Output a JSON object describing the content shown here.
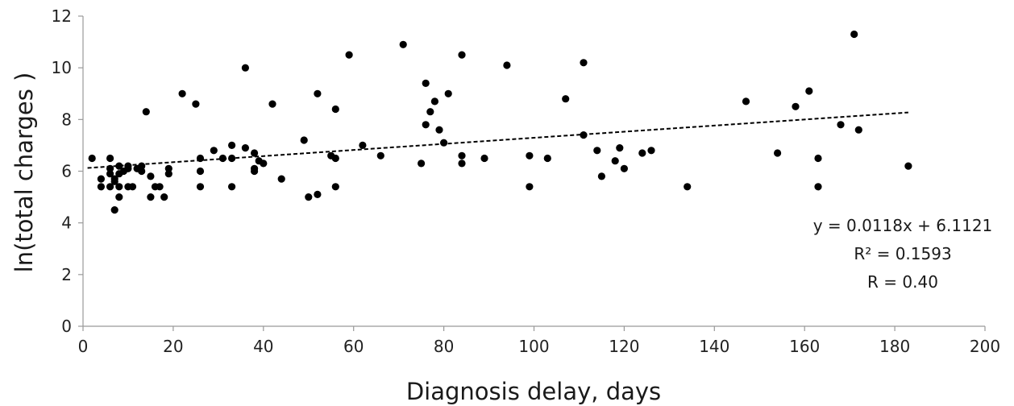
{
  "chart_data": {
    "type": "scatter",
    "xlabel": "Diagnosis delay, days",
    "ylabel": "ln(total charges )",
    "xlim": [
      0,
      200
    ],
    "ylim": [
      0,
      12
    ],
    "xticks": [
      0,
      20,
      40,
      60,
      80,
      100,
      120,
      140,
      160,
      180,
      200
    ],
    "yticks": [
      0,
      2,
      4,
      6,
      8,
      10,
      12
    ],
    "grid": false,
    "legend": "none",
    "marker_color": "#000000",
    "points": [
      [
        2,
        6.5
      ],
      [
        4,
        5.7
      ],
      [
        4,
        5.4
      ],
      [
        6,
        6.5
      ],
      [
        6,
        6.1
      ],
      [
        6,
        5.9
      ],
      [
        6,
        5.4
      ],
      [
        7,
        5.7
      ],
      [
        7,
        5.6
      ],
      [
        7,
        4.5
      ],
      [
        8,
        6.2
      ],
      [
        8,
        5.9
      ],
      [
        8,
        5.4
      ],
      [
        8,
        5.0
      ],
      [
        9,
        6.0
      ],
      [
        10,
        6.2
      ],
      [
        10,
        6.1
      ],
      [
        10,
        5.4
      ],
      [
        11,
        5.4
      ],
      [
        12,
        6.1
      ],
      [
        13,
        6.0
      ],
      [
        13,
        6.2
      ],
      [
        14,
        8.3
      ],
      [
        15,
        5.8
      ],
      [
        15,
        5.0
      ],
      [
        16,
        5.4
      ],
      [
        17,
        5.4
      ],
      [
        18,
        5.0
      ],
      [
        19,
        6.1
      ],
      [
        19,
        5.9
      ],
      [
        22,
        9.0
      ],
      [
        25,
        8.6
      ],
      [
        26,
        6.5
      ],
      [
        26,
        6.0
      ],
      [
        26,
        5.4
      ],
      [
        29,
        6.8
      ],
      [
        31,
        6.5
      ],
      [
        33,
        7.0
      ],
      [
        33,
        6.5
      ],
      [
        33,
        5.4
      ],
      [
        36,
        10.0
      ],
      [
        36,
        6.9
      ],
      [
        38,
        6.7
      ],
      [
        38,
        6.1
      ],
      [
        38,
        6.0
      ],
      [
        39,
        6.4
      ],
      [
        40,
        6.3
      ],
      [
        42,
        8.6
      ],
      [
        44,
        5.7
      ],
      [
        49,
        7.2
      ],
      [
        50,
        5.0
      ],
      [
        52,
        9.0
      ],
      [
        52,
        5.1
      ],
      [
        55,
        6.6
      ],
      [
        56,
        8.4
      ],
      [
        56,
        6.5
      ],
      [
        56,
        5.4
      ],
      [
        59,
        10.5
      ],
      [
        62,
        7.0
      ],
      [
        66,
        6.6
      ],
      [
        71,
        10.9
      ],
      [
        75,
        6.3
      ],
      [
        76,
        9.4
      ],
      [
        76,
        7.8
      ],
      [
        77,
        8.3
      ],
      [
        78,
        8.7
      ],
      [
        79,
        7.6
      ],
      [
        80,
        7.1
      ],
      [
        81,
        9.0
      ],
      [
        84,
        10.5
      ],
      [
        84,
        6.6
      ],
      [
        84,
        6.3
      ],
      [
        89,
        6.5
      ],
      [
        94,
        10.1
      ],
      [
        99,
        6.6
      ],
      [
        99,
        5.4
      ],
      [
        103,
        6.5
      ],
      [
        107,
        8.8
      ],
      [
        111,
        10.2
      ],
      [
        111,
        7.4
      ],
      [
        114,
        6.8
      ],
      [
        115,
        5.8
      ],
      [
        118,
        6.4
      ],
      [
        119,
        6.9
      ],
      [
        120,
        6.1
      ],
      [
        124,
        6.7
      ],
      [
        126,
        6.8
      ],
      [
        134,
        5.4
      ],
      [
        147,
        8.7
      ],
      [
        154,
        6.7
      ],
      [
        158,
        8.5
      ],
      [
        161,
        9.1
      ],
      [
        163,
        6.5
      ],
      [
        163,
        5.4
      ],
      [
        168,
        7.8
      ],
      [
        171,
        11.3
      ],
      [
        172,
        7.6
      ],
      [
        183,
        6.2
      ]
    ],
    "trendline": {
      "slope": 0.0118,
      "intercept": 6.1121,
      "x_range": [
        1,
        183
      ],
      "style": "dashed"
    },
    "annotations": [
      "y = 0.0118x + 6.1121",
      "R² = 0.1593",
      "R = 0.40"
    ]
  }
}
